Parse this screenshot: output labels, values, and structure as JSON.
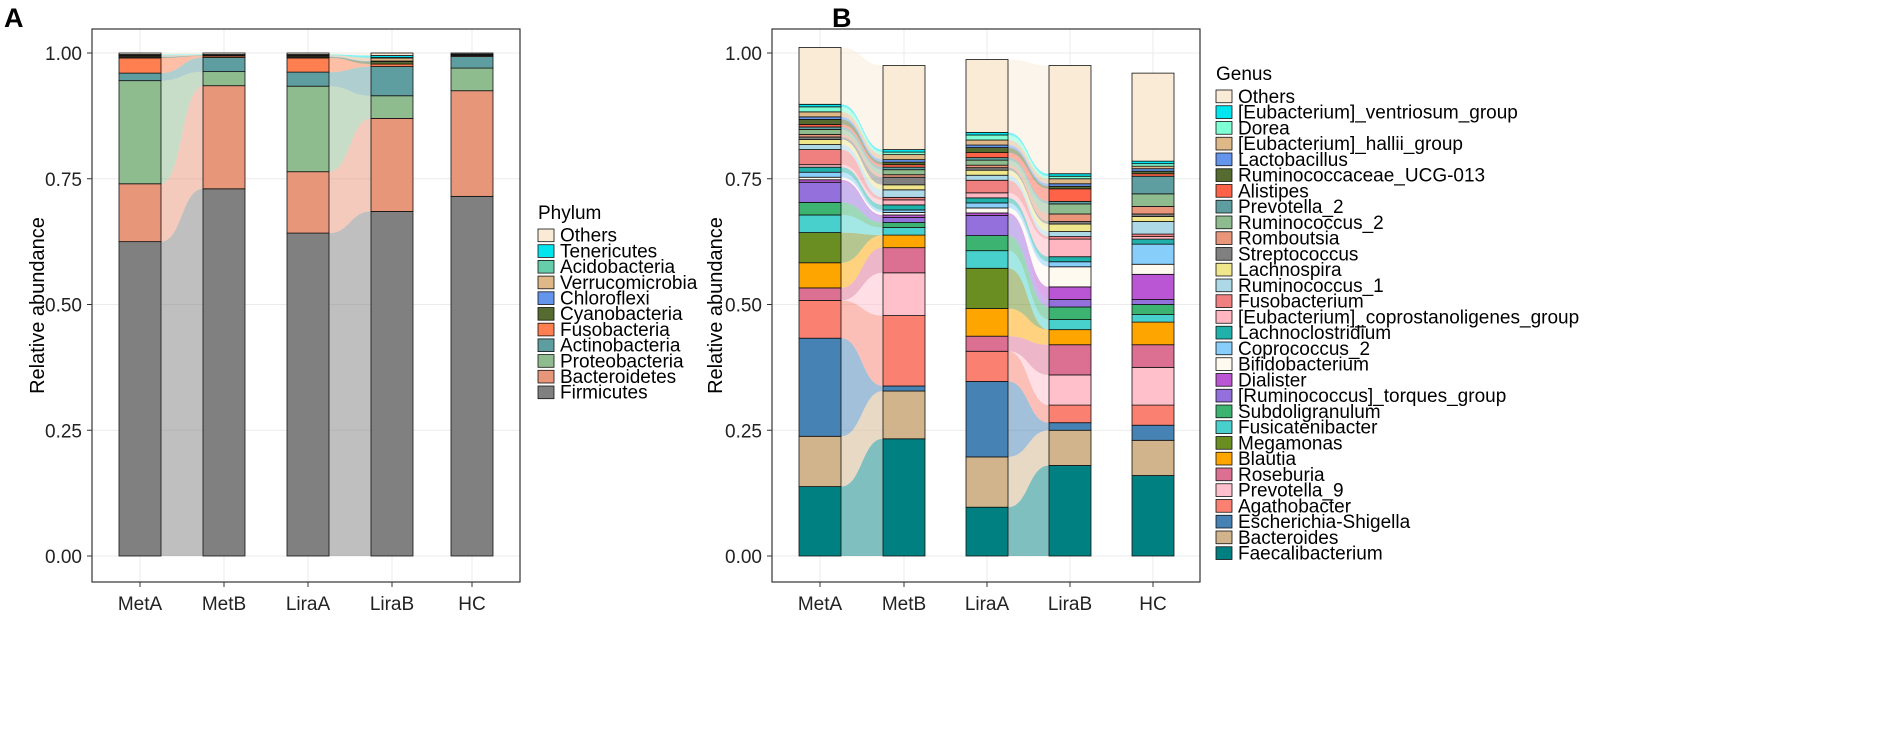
{
  "chart_data": [
    {
      "panel": "A",
      "type": "bar",
      "stacked": true,
      "xlabel": "",
      "ylabel": "Relative abundance",
      "ylim": [
        0,
        1
      ],
      "yticks": [
        "0.00",
        "0.25",
        "0.50",
        "0.75",
        "1.00"
      ],
      "categories": [
        "MetA",
        "MetB",
        "LiraA",
        "LiraB",
        "HC"
      ],
      "legend_title": "Phylum",
      "legend_position": "right",
      "series": [
        {
          "name": "Firmicutes",
          "color": "#808080",
          "values": [
            0.625,
            0.73,
            0.642,
            0.685,
            0.715
          ]
        },
        {
          "name": "Bacteroidetes",
          "color": "#E8967A",
          "values": [
            0.115,
            0.205,
            0.122,
            0.185,
            0.21
          ]
        },
        {
          "name": "Proteobacteria",
          "color": "#8FBC8F",
          "values": [
            0.205,
            0.028,
            0.17,
            0.045,
            0.045
          ]
        },
        {
          "name": "Actinobacteria",
          "color": "#5F9EA0",
          "values": [
            0.015,
            0.028,
            0.028,
            0.058,
            0.023
          ]
        },
        {
          "name": "Fusobacteria",
          "color": "#FF7F50",
          "values": [
            0.03,
            0.003,
            0.028,
            0.005,
            0.002
          ]
        },
        {
          "name": "Cyanobacteria",
          "color": "#556B2F",
          "values": [
            0.002,
            0.001,
            0.002,
            0.005,
            0.001
          ]
        },
        {
          "name": "Chloroflexi",
          "color": "#6495ED",
          "values": [
            0.001,
            0.0,
            0.001,
            0.001,
            0.0
          ]
        },
        {
          "name": "Verrucomicrobia",
          "color": "#DEB887",
          "values": [
            0.002,
            0.001,
            0.002,
            0.006,
            0.001
          ]
        },
        {
          "name": "Acidobacteria",
          "color": "#66CDAA",
          "values": [
            0.001,
            0.0,
            0.001,
            0.001,
            0.0
          ]
        },
        {
          "name": "Tenericutes",
          "color": "#00E5EE",
          "values": [
            0.001,
            0.001,
            0.001,
            0.004,
            0.001
          ]
        },
        {
          "name": "Others",
          "color": "#FAEBD7",
          "values": [
            0.003,
            0.003,
            0.003,
            0.005,
            0.002
          ]
        }
      ]
    },
    {
      "panel": "B",
      "type": "bar",
      "stacked": true,
      "xlabel": "",
      "ylabel": "Relative abundance",
      "ylim": [
        0,
        1
      ],
      "yticks": [
        "0.00",
        "0.25",
        "0.50",
        "0.75",
        "1.00"
      ],
      "categories": [
        "MetA",
        "MetB",
        "LiraA",
        "LiraB",
        "HC"
      ],
      "legend_title": "Genus",
      "legend_position": "right",
      "series": [
        {
          "name": "Faecalibacterium",
          "color": "#008080",
          "values": [
            0.138,
            0.233,
            0.097,
            0.18,
            0.16
          ]
        },
        {
          "name": "Bacteroides",
          "color": "#D2B48C",
          "values": [
            0.1,
            0.095,
            0.1,
            0.07,
            0.07
          ]
        },
        {
          "name": "Escherichia-Shigella",
          "color": "#4682B4",
          "values": [
            0.195,
            0.01,
            0.15,
            0.015,
            0.03
          ]
        },
        {
          "name": "Agathobacter",
          "color": "#FA8072",
          "values": [
            0.075,
            0.14,
            0.06,
            0.035,
            0.04
          ]
        },
        {
          "name": "Prevotella_9",
          "color": "#FFC0CB",
          "values": [
            0.0,
            0.085,
            0.0,
            0.06,
            0.075
          ]
        },
        {
          "name": "Roseburia",
          "color": "#DB7093",
          "values": [
            0.025,
            0.05,
            0.03,
            0.06,
            0.045
          ]
        },
        {
          "name": "Blautia",
          "color": "#FFA500",
          "values": [
            0.05,
            0.025,
            0.055,
            0.03,
            0.045
          ]
        },
        {
          "name": "Megamonas",
          "color": "#6B8E23",
          "values": [
            0.06,
            0.0,
            0.08,
            0.0,
            0.0
          ]
        },
        {
          "name": "Fusicatenibacter",
          "color": "#48D1CC",
          "values": [
            0.035,
            0.015,
            0.035,
            0.02,
            0.015
          ]
        },
        {
          "name": "Subdoligranulum",
          "color": "#3CB371",
          "values": [
            0.025,
            0.01,
            0.03,
            0.025,
            0.02
          ]
        },
        {
          "name": "[Ruminococcus]_torques_group",
          "color": "#9370DB",
          "values": [
            0.04,
            0.01,
            0.04,
            0.015,
            0.01
          ]
        },
        {
          "name": "Dialister",
          "color": "#BA55D3",
          "values": [
            0.005,
            0.005,
            0.005,
            0.025,
            0.05
          ]
        },
        {
          "name": "Bifidobacterium",
          "color": "#FFFAF0",
          "values": [
            0.005,
            0.005,
            0.01,
            0.04,
            0.02
          ]
        },
        {
          "name": "Coprococcus_2",
          "color": "#87CEFA",
          "values": [
            0.01,
            0.005,
            0.01,
            0.01,
            0.04
          ]
        },
        {
          "name": "Lachnoclostridium",
          "color": "#20B2AA",
          "values": [
            0.01,
            0.01,
            0.01,
            0.01,
            0.01
          ]
        },
        {
          "name": "[Eubacterium]_coprostanoligenes_group",
          "color": "#FFB6C1",
          "values": [
            0.005,
            0.01,
            0.01,
            0.035,
            0.005
          ]
        },
        {
          "name": "Fusobacterium",
          "color": "#F08080",
          "values": [
            0.03,
            0.005,
            0.025,
            0.005,
            0.005
          ]
        },
        {
          "name": "Ruminococcus_1",
          "color": "#ADD8E6",
          "values": [
            0.01,
            0.015,
            0.01,
            0.01,
            0.025
          ]
        },
        {
          "name": "Lachnospira",
          "color": "#F0E68C",
          "values": [
            0.01,
            0.01,
            0.01,
            0.015,
            0.01
          ]
        },
        {
          "name": "Streptococcus",
          "color": "#808080",
          "values": [
            0.005,
            0.015,
            0.005,
            0.005,
            0.005
          ]
        },
        {
          "name": "Romboutsia",
          "color": "#E9967A",
          "values": [
            0.005,
            0.005,
            0.005,
            0.015,
            0.015
          ]
        },
        {
          "name": "Ruminococcus_2",
          "color": "#8FBC8F",
          "values": [
            0.01,
            0.01,
            0.01,
            0.02,
            0.025
          ]
        },
        {
          "name": "Prevotella_2",
          "color": "#5F9EA0",
          "values": [
            0.005,
            0.005,
            0.005,
            0.005,
            0.035
          ]
        },
        {
          "name": "Alistipes",
          "color": "#FF6347",
          "values": [
            0.005,
            0.005,
            0.01,
            0.025,
            0.005
          ]
        },
        {
          "name": "Ruminococcaceae_UCG-013",
          "color": "#556B2F",
          "values": [
            0.01,
            0.005,
            0.01,
            0.005,
            0.005
          ]
        },
        {
          "name": "Lactobacillus",
          "color": "#6495ED",
          "values": [
            0.005,
            0.005,
            0.005,
            0.005,
            0.005
          ]
        },
        {
          "name": "[Eubacterium]_hallii_group",
          "color": "#DEB887",
          "values": [
            0.01,
            0.01,
            0.01,
            0.01,
            0.005
          ]
        },
        {
          "name": "Dorea",
          "color": "#7FFFD4",
          "values": [
            0.01,
            0.005,
            0.01,
            0.005,
            0.005
          ]
        },
        {
          "name": "[Eubacterium]_ventriosum_group",
          "color": "#00E5EE",
          "values": [
            0.005,
            0.005,
            0.005,
            0.005,
            0.005
          ]
        },
        {
          "name": "Others",
          "color": "#FAEBD7",
          "values": [
            0.113,
            0.167,
            0.145,
            0.215,
            0.175
          ]
        }
      ]
    }
  ]
}
